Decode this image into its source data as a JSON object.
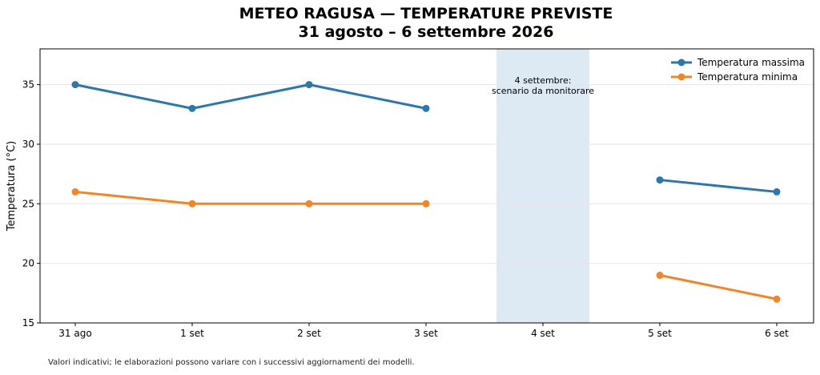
{
  "chart_data": {
    "type": "line",
    "title": "METEO RAGUSA — TEMPERATURE PREVISTE",
    "subtitle": "31 agosto – 6 settembre 2026",
    "ylabel": "Temperatura (°C)",
    "xlabel": "",
    "ylim": [
      15,
      38
    ],
    "yticks": [
      15,
      20,
      25,
      30,
      35
    ],
    "categories": [
      "31 ago",
      "1 set",
      "2 set",
      "3 set",
      "4 set",
      "5 set",
      "6 set"
    ],
    "series": [
      {
        "name": "Temperatura massima",
        "color": "#2e77aa",
        "values": [
          35,
          33,
          35,
          33,
          null,
          27,
          26
        ]
      },
      {
        "name": "Temperatura minima",
        "color": "#f0862a",
        "values": [
          26,
          25,
          25,
          25,
          null,
          19,
          17
        ]
      }
    ],
    "highlight": {
      "category": "4 set",
      "label_line1": "4 settembre:",
      "label_line2": "scenario da monitorare",
      "color": "#dde9f3"
    },
    "grid": "horizontal",
    "legend": "top-right",
    "footnote": "Valori indicativi; le elaborazioni possono variare con i successivi aggiornamenti dei modelli."
  }
}
